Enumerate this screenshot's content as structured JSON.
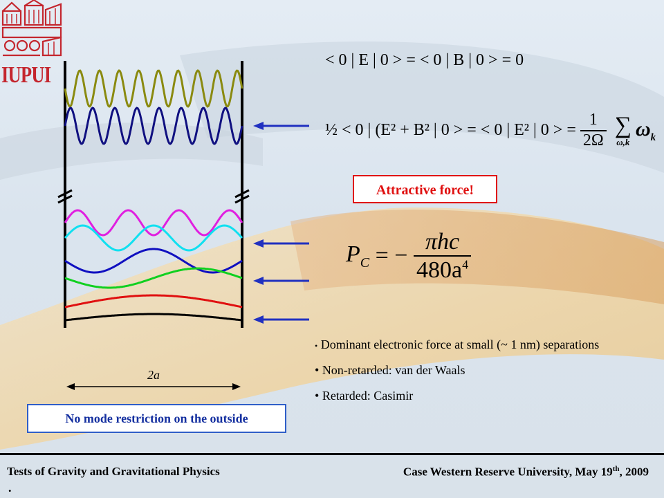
{
  "logo": {
    "text": "IUPUI",
    "color": "#c4262e"
  },
  "equations": {
    "vacuum_expectation": "< 0 | E | 0 > = < 0 | B | 0 > = 0",
    "energy_lhs": "½ < 0 | (E² + B² | 0 > = < 0 | E² | 0 > =",
    "energy_frac_num": "1",
    "energy_frac_den": "2Ω",
    "energy_sum_symbol": "∑",
    "energy_sum_sub": "ω,k",
    "energy_sum_term": "ω",
    "energy_sum_term_sub": "k",
    "casimir_lhs": "P",
    "casimir_lhs_sub": "C",
    "casimir_eq": "= −",
    "casimir_num": "πhc",
    "casimir_den": "480a",
    "casimir_den_exp": "4"
  },
  "callouts": {
    "attractive": "Attractive force!",
    "no_mode": "No mode restriction on the outside"
  },
  "diagram": {
    "width_label": "2a"
  },
  "bullets": [
    "Dominant electronic force at small (~ 1 nm) separations",
    "Non-retarded: van der Waals",
    "Retarded: Casimir"
  ],
  "footer": {
    "left": "Tests of Gravity and Gravitational Physics",
    "right_prefix": "Case Western Reserve University, May 19",
    "right_sup": "th",
    "right_suffix": ", 2009",
    "dot": "."
  },
  "colors": {
    "olive_wave": "#8a8a10",
    "navy_wave": "#101080",
    "magenta_wave": "#e020e0",
    "cyan_wave": "#10e0f0",
    "blue_wave": "#1010c0",
    "green_wave": "#10d020",
    "red_wave": "#e01010",
    "black_wave": "#000000",
    "arrow": "#2030c0",
    "attract_border": "#e01010",
    "nomode_border": "#2f5ec8"
  }
}
